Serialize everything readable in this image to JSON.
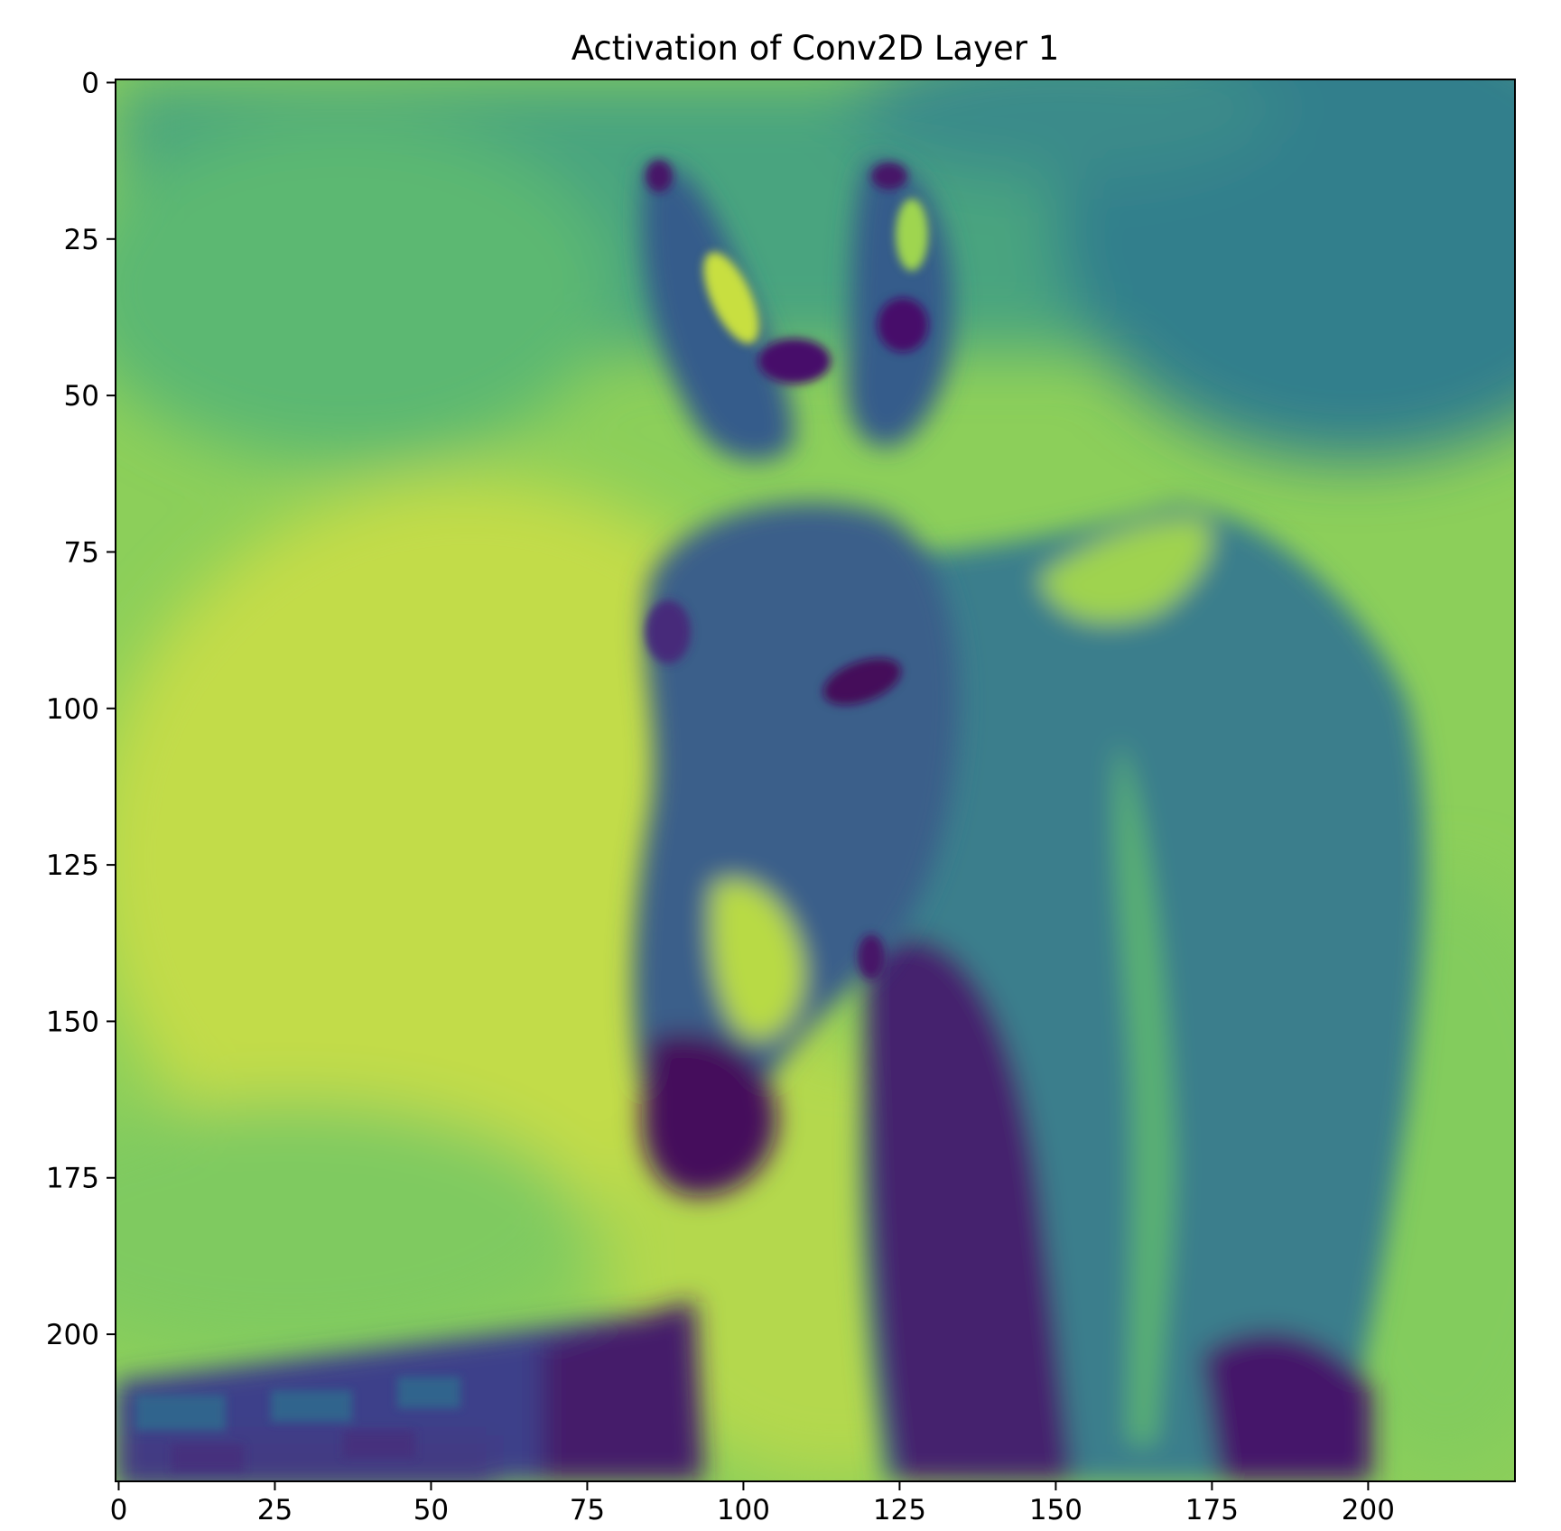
{
  "chart_data": {
    "type": "heatmap",
    "title": "Activation of Conv2D Layer 1",
    "xlabel": "",
    "ylabel": "",
    "image_size": [
      224,
      224
    ],
    "xlim": [
      -0.5,
      223.5
    ],
    "ylim": [
      223.5,
      -0.5
    ],
    "x_ticks": [
      0,
      25,
      50,
      75,
      100,
      125,
      150,
      175,
      200
    ],
    "y_ticks": [
      0,
      25,
      50,
      75,
      100,
      125,
      150,
      175,
      200
    ],
    "colormap": "viridis",
    "grid": false,
    "content": "single-channel feature map of a donkey photo: donkey head with two tall ears, face and body in dark purple/blue tones on a yellow-green background; a dark trough-like shape in the lower-left corner"
  }
}
